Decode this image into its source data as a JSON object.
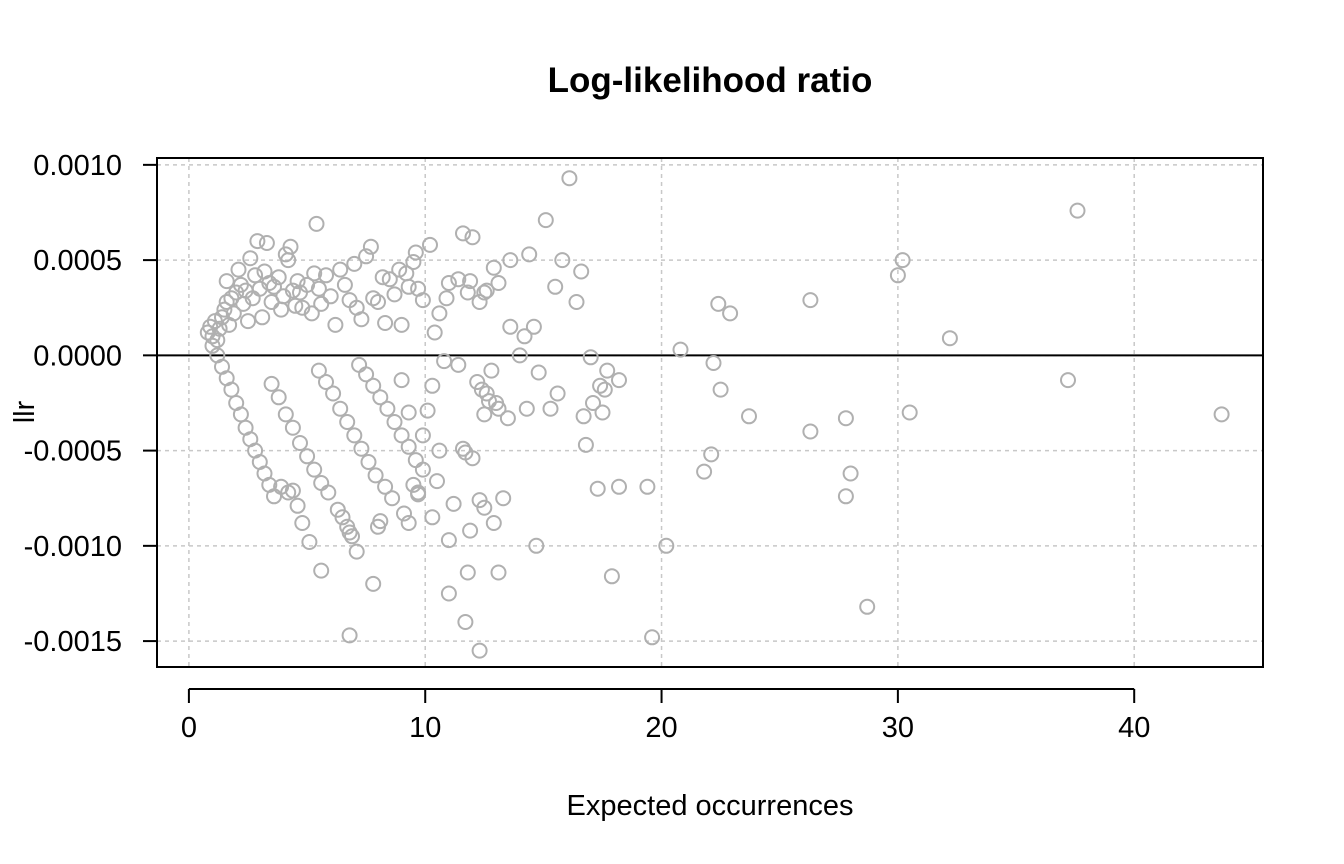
{
  "chart_data": {
    "type": "scatter",
    "title": "Log-likelihood ratio",
    "xlabel": "Expected occurrences",
    "ylabel": "llr",
    "xlim": [
      -1.35,
      45.45
    ],
    "ylim": [
      -0.001636,
      0.001036
    ],
    "x_ticks": [
      0,
      10,
      20,
      30,
      40
    ],
    "x_tick_labels": [
      "0",
      "10",
      "20",
      "30",
      "40"
    ],
    "y_ticks": [
      -0.0015,
      -0.001,
      -0.0005,
      0.0,
      0.0005,
      0.001
    ],
    "y_tick_labels": [
      "-0.0015",
      "-0.0010",
      "-0.0005",
      "0.0000",
      "0.0005",
      "0.0010"
    ],
    "grid": true,
    "reference_line_y": 0,
    "point_color": "#b0b0b0",
    "curves_note": "",
    "points": [
      [
        0.8,
        0.00012
      ],
      [
        0.9,
        0.00015
      ],
      [
        1.0,
        0.0001
      ],
      [
        1.1,
        0.00018
      ],
      [
        1.2,
        8e-05
      ],
      [
        1.3,
        0.00014
      ],
      [
        1.4,
        0.0002
      ],
      [
        1.5,
        0.00024
      ],
      [
        1.6,
        0.00028
      ],
      [
        1.6,
        0.00039
      ],
      [
        1.7,
        0.00016
      ],
      [
        1.8,
        0.0003
      ],
      [
        1.9,
        0.00022
      ],
      [
        2.0,
        0.00033
      ],
      [
        2.1,
        0.00045
      ],
      [
        2.2,
        0.00037
      ],
      [
        2.3,
        0.00027
      ],
      [
        2.4,
        0.00034
      ],
      [
        2.5,
        0.00018
      ],
      [
        2.6,
        0.00051
      ],
      [
        2.7,
        0.0003
      ],
      [
        2.8,
        0.00042
      ],
      [
        2.9,
        0.0006
      ],
      [
        3.0,
        0.00035
      ],
      [
        3.1,
        0.0002
      ],
      [
        3.2,
        0.00044
      ],
      [
        3.3,
        0.00059
      ],
      [
        3.4,
        0.00038
      ],
      [
        3.5,
        0.00028
      ],
      [
        3.6,
        0.00036
      ],
      [
        3.8,
        0.00041
      ],
      [
        3.9,
        0.00024
      ],
      [
        4.0,
        0.00031
      ],
      [
        4.1,
        0.00053
      ],
      [
        4.2,
        0.0005
      ],
      [
        4.3,
        0.00057
      ],
      [
        4.4,
        0.00034
      ],
      [
        4.5,
        0.00026
      ],
      [
        4.6,
        0.00039
      ],
      [
        4.7,
        0.00033
      ],
      [
        4.8,
        0.00025
      ],
      [
        5.0,
        0.00037
      ],
      [
        5.2,
        0.00022
      ],
      [
        5.3,
        0.00043
      ],
      [
        5.4,
        0.00069
      ],
      [
        5.5,
        0.00035
      ],
      [
        5.6,
        0.00027
      ],
      [
        5.8,
        0.00042
      ],
      [
        6.0,
        0.00031
      ],
      [
        6.2,
        0.00016
      ],
      [
        6.4,
        0.00045
      ],
      [
        6.6,
        0.00037
      ],
      [
        6.8,
        0.00029
      ],
      [
        7.0,
        0.00048
      ],
      [
        7.1,
        0.00025
      ],
      [
        7.3,
        0.00019
      ],
      [
        7.5,
        0.00052
      ],
      [
        7.7,
        0.00057
      ],
      [
        7.8,
        0.0003
      ],
      [
        8.0,
        0.00028
      ],
      [
        8.2,
        0.00041
      ],
      [
        8.3,
        0.00017
      ],
      [
        8.5,
        0.0004
      ],
      [
        8.7,
        0.00032
      ],
      [
        8.9,
        0.00045
      ],
      [
        9.0,
        0.00016
      ],
      [
        9.2,
        0.00043
      ],
      [
        9.3,
        0.00036
      ],
      [
        9.5,
        0.00049
      ],
      [
        9.6,
        0.00054
      ],
      [
        9.7,
        0.00035
      ],
      [
        9.9,
        0.00029
      ],
      [
        10.2,
        0.00058
      ],
      [
        10.4,
        0.00012
      ],
      [
        10.6,
        0.00022
      ],
      [
        10.9,
        0.0003
      ],
      [
        11.0,
        0.00038
      ],
      [
        11.4,
        0.0004
      ],
      [
        11.6,
        0.00064
      ],
      [
        11.8,
        0.00033
      ],
      [
        11.9,
        0.00039
      ],
      [
        12.0,
        0.00062
      ],
      [
        12.3,
        0.00028
      ],
      [
        12.5,
        0.00033
      ],
      [
        12.6,
        0.00034
      ],
      [
        12.9,
        0.00046
      ],
      [
        13.1,
        0.00038
      ],
      [
        13.6,
        0.0005
      ],
      [
        13.6,
        0.00015
      ],
      [
        14.0,
        0.0
      ],
      [
        14.2,
        0.0001
      ],
      [
        14.4,
        0.00053
      ],
      [
        14.6,
        0.00015
      ],
      [
        15.1,
        0.00071
      ],
      [
        15.5,
        0.00036
      ],
      [
        15.8,
        0.0005
      ],
      [
        16.1,
        0.00093
      ],
      [
        16.4,
        0.00028
      ],
      [
        16.6,
        0.00044
      ],
      [
        17.0,
        -1e-05
      ],
      [
        17.7,
        -8e-05
      ],
      [
        20.8,
        3e-05
      ],
      [
        22.2,
        -4e-05
      ],
      [
        22.4,
        0.00027
      ],
      [
        22.9,
        0.00022
      ],
      [
        26.3,
        0.00029
      ],
      [
        30.0,
        0.00042
      ],
      [
        30.2,
        0.0005
      ],
      [
        32.2,
        9e-05
      ],
      [
        37.6,
        0.00076
      ],
      [
        1.0,
        5e-05
      ],
      [
        1.2,
        0.0
      ],
      [
        1.4,
        -6e-05
      ],
      [
        1.6,
        -0.00012
      ],
      [
        1.8,
        -0.00018
      ],
      [
        2.0,
        -0.00025
      ],
      [
        2.2,
        -0.00031
      ],
      [
        2.4,
        -0.00038
      ],
      [
        2.6,
        -0.00044
      ],
      [
        2.8,
        -0.0005
      ],
      [
        3.0,
        -0.00056
      ],
      [
        3.2,
        -0.00062
      ],
      [
        3.4,
        -0.00068
      ],
      [
        3.6,
        -0.00074
      ],
      [
        3.9,
        -0.00069
      ],
      [
        4.2,
        -0.00072
      ],
      [
        4.4,
        -0.00071
      ],
      [
        4.6,
        -0.00079
      ],
      [
        4.8,
        -0.00088
      ],
      [
        5.1,
        -0.00098
      ],
      [
        5.6,
        -0.00113
      ],
      [
        3.5,
        -0.00015
      ],
      [
        3.8,
        -0.00022
      ],
      [
        4.1,
        -0.00031
      ],
      [
        4.4,
        -0.00038
      ],
      [
        4.7,
        -0.00046
      ],
      [
        5.0,
        -0.00053
      ],
      [
        5.3,
        -0.0006
      ],
      [
        5.6,
        -0.00067
      ],
      [
        5.9,
        -0.00072
      ],
      [
        6.3,
        -0.00081
      ],
      [
        6.5,
        -0.00085
      ],
      [
        6.7,
        -0.0009
      ],
      [
        6.8,
        -0.00093
      ],
      [
        6.9,
        -0.00095
      ],
      [
        7.1,
        -0.00103
      ],
      [
        6.8,
        -0.00147
      ],
      [
        7.8,
        -0.0012
      ],
      [
        5.5,
        -8e-05
      ],
      [
        5.8,
        -0.00014
      ],
      [
        6.1,
        -0.0002
      ],
      [
        6.4,
        -0.00028
      ],
      [
        6.7,
        -0.00035
      ],
      [
        7.0,
        -0.00042
      ],
      [
        7.3,
        -0.00049
      ],
      [
        7.6,
        -0.00056
      ],
      [
        7.9,
        -0.00063
      ],
      [
        8.0,
        -0.0009
      ],
      [
        8.1,
        -0.00087
      ],
      [
        8.3,
        -0.00069
      ],
      [
        8.6,
        -0.00075
      ],
      [
        7.2,
        -5e-05
      ],
      [
        7.5,
        -0.0001
      ],
      [
        7.8,
        -0.00016
      ],
      [
        8.1,
        -0.00022
      ],
      [
        8.4,
        -0.00028
      ],
      [
        8.7,
        -0.00035
      ],
      [
        9.0,
        -0.00042
      ],
      [
        9.3,
        -0.00048
      ],
      [
        9.6,
        -0.00055
      ],
      [
        9.9,
        -0.0006
      ],
      [
        9.1,
        -0.00083
      ],
      [
        9.3,
        -0.00088
      ],
      [
        9.5,
        -0.00068
      ],
      [
        9.7,
        -0.00072
      ],
      [
        9.0,
        -0.00013
      ],
      [
        9.3,
        -0.0003
      ],
      [
        9.7,
        -0.00073
      ],
      [
        9.9,
        -0.00042
      ],
      [
        10.1,
        -0.00029
      ],
      [
        10.3,
        -0.00016
      ],
      [
        10.5,
        -0.00066
      ],
      [
        10.6,
        -0.0005
      ],
      [
        10.8,
        -3e-05
      ],
      [
        10.3,
        -0.00085
      ],
      [
        11.0,
        -0.00097
      ],
      [
        11.0,
        -0.00125
      ],
      [
        11.2,
        -0.00078
      ],
      [
        11.4,
        -5e-05
      ],
      [
        11.6,
        -0.00049
      ],
      [
        11.7,
        -0.00051
      ],
      [
        11.7,
        -0.0014
      ],
      [
        11.8,
        -0.00114
      ],
      [
        11.9,
        -0.00092
      ],
      [
        12.0,
        -0.00054
      ],
      [
        12.2,
        -0.00014
      ],
      [
        12.3,
        -0.00076
      ],
      [
        12.4,
        -0.00018
      ],
      [
        12.5,
        -0.0008
      ],
      [
        12.5,
        -0.00031
      ],
      [
        12.6,
        -0.0002
      ],
      [
        12.7,
        -0.00024
      ],
      [
        12.8,
        -8e-05
      ],
      [
        12.9,
        -0.00088
      ],
      [
        13.0,
        -0.00025
      ],
      [
        13.1,
        -0.00028
      ],
      [
        13.1,
        -0.00114
      ],
      [
        13.3,
        -0.00075
      ],
      [
        13.5,
        -0.00033
      ],
      [
        12.3,
        -0.00155
      ],
      [
        14.3,
        -0.00028
      ],
      [
        14.7,
        -0.001
      ],
      [
        14.8,
        -9e-05
      ],
      [
        15.3,
        -0.00028
      ],
      [
        15.6,
        -0.0002
      ],
      [
        16.7,
        -0.00032
      ],
      [
        16.8,
        -0.00047
      ],
      [
        17.1,
        -0.00025
      ],
      [
        17.3,
        -0.0007
      ],
      [
        17.4,
        -0.00016
      ],
      [
        17.5,
        -0.0003
      ],
      [
        17.6,
        -0.00018
      ],
      [
        17.9,
        -0.00116
      ],
      [
        18.2,
        -0.00069
      ],
      [
        18.2,
        -0.00013
      ],
      [
        19.4,
        -0.00069
      ],
      [
        19.6,
        -0.00148
      ],
      [
        20.2,
        -0.001
      ],
      [
        21.8,
        -0.00061
      ],
      [
        22.1,
        -0.00052
      ],
      [
        22.5,
        -0.00018
      ],
      [
        23.7,
        -0.00032
      ],
      [
        26.3,
        -0.0004
      ],
      [
        27.8,
        -0.00074
      ],
      [
        27.8,
        -0.00033
      ],
      [
        28.0,
        -0.00062
      ],
      [
        28.7,
        -0.00132
      ],
      [
        30.5,
        -0.0003
      ],
      [
        37.2,
        -0.00013
      ],
      [
        43.7,
        -0.00031
      ]
    ]
  }
}
